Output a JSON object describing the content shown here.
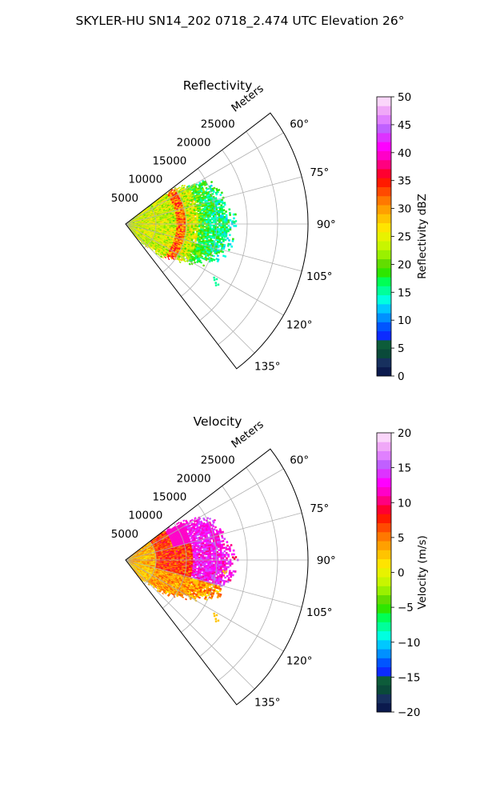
{
  "suptitle": "SKYLER-HU  SN14_202  0718_2.474 UTC Elevation 26°",
  "chart_data": [
    {
      "type": "heatmap",
      "projection": "polar-sector",
      "title": "Reflectivity",
      "range_label": "Meters",
      "range_ticks": [
        5000,
        10000,
        15000,
        20000,
        25000
      ],
      "range_tick_labels": [
        "5000",
        "10000",
        "15000",
        "20000",
        "25000"
      ],
      "rmax": 30000,
      "theta_range_deg": [
        52.5,
        142.5
      ],
      "theta_ticks_deg": [
        60,
        75,
        90,
        105,
        120,
        135
      ],
      "theta_tick_labels": [
        "60°",
        "75°",
        "90°",
        "105°",
        "120°",
        "135°"
      ],
      "grid": true,
      "colorbar": {
        "label": "Reflectivity dBZ",
        "min": 0,
        "max": 50,
        "ticks": [
          0,
          5,
          10,
          15,
          20,
          25,
          30,
          35,
          40,
          45,
          50
        ],
        "tick_labels": [
          "0",
          "5",
          "10",
          "15",
          "20",
          "25",
          "30",
          "35",
          "40",
          "45",
          "50"
        ],
        "colors": [
          "#0b1a4d",
          "#17305e",
          "#0a4a3a",
          "#0d5c3a",
          "#0c2bff",
          "#0055ff",
          "#0090ff",
          "#00c8ff",
          "#00ffe0",
          "#00ff9a",
          "#00ff55",
          "#2ee600",
          "#62dd00",
          "#9af000",
          "#c8f500",
          "#e8f200",
          "#ffe400",
          "#ffc400",
          "#ffa000",
          "#ff7800",
          "#ff4a00",
          "#ff1a00",
          "#ff0030",
          "#ff0080",
          "#ff00c8",
          "#ff00ff",
          "#dd33ff",
          "#c060ff",
          "#e080ff",
          "#f0a8f8",
          "#fbd6fb"
        ]
      },
      "field": {
        "center_value": 24,
        "outer_value": 14,
        "core_value": 32,
        "core_range_m": [
          7000,
          12000
        ],
        "extent_m": [
          0,
          19500
        ]
      }
    },
    {
      "type": "heatmap",
      "projection": "polar-sector",
      "title": "Velocity",
      "range_label": "Meters",
      "range_ticks": [
        5000,
        10000,
        15000,
        20000,
        25000
      ],
      "range_tick_labels": [
        "5000",
        "10000",
        "15000",
        "20000",
        "25000"
      ],
      "rmax": 30000,
      "theta_range_deg": [
        52.5,
        142.5
      ],
      "theta_ticks_deg": [
        60,
        75,
        90,
        105,
        120,
        135
      ],
      "theta_tick_labels": [
        "60°",
        "75°",
        "90°",
        "105°",
        "120°",
        "135°"
      ],
      "grid": true,
      "colorbar": {
        "label": "Velocity (m/s)",
        "min": -20,
        "max": 20,
        "ticks": [
          -20,
          -15,
          -10,
          -5,
          0,
          5,
          10,
          15,
          20
        ],
        "tick_labels": [
          "−20",
          "−15",
          "−10",
          "−5",
          "0",
          "5",
          "10",
          "15",
          "20"
        ],
        "colors": [
          "#0b1a4d",
          "#17305e",
          "#0a4a3a",
          "#0d5c3a",
          "#0c2bff",
          "#0055ff",
          "#0090ff",
          "#00c8ff",
          "#00ffe0",
          "#00ff9a",
          "#00ff55",
          "#2ee600",
          "#62dd00",
          "#9af000",
          "#c8f500",
          "#e8f200",
          "#ffe400",
          "#ffc400",
          "#ffa000",
          "#ff7800",
          "#ff4a00",
          "#ff1a00",
          "#ff0030",
          "#ff0080",
          "#ff00c8",
          "#ff00ff",
          "#dd33ff",
          "#c060ff",
          "#e080ff",
          "#f0a8f8",
          "#fbd6fb"
        ]
      },
      "field": {
        "near_value": 2,
        "mid_value": 7,
        "far_value": 13,
        "south_value": 4,
        "extent_m": [
          0,
          19500
        ]
      }
    }
  ]
}
